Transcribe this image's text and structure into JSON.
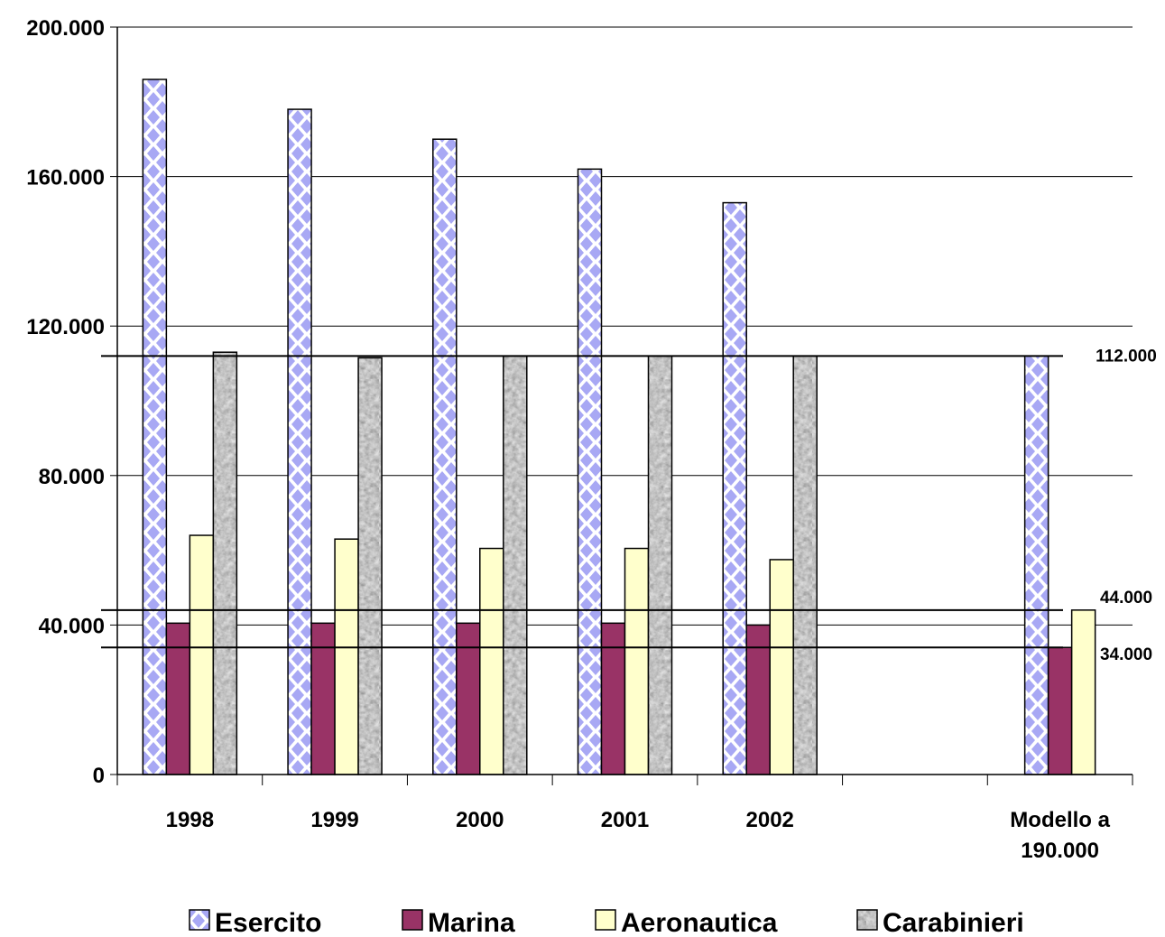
{
  "chart_data": {
    "type": "bar",
    "categories": [
      [
        "1998"
      ],
      [
        "1999"
      ],
      [
        "2000"
      ],
      [
        "2001"
      ],
      [
        "2002"
      ],
      [
        ""
      ],
      [
        "Modello a",
        "190.000"
      ]
    ],
    "series": [
      {
        "name": "Esercito",
        "values": [
          186000,
          178000,
          170000,
          162000,
          153000,
          null,
          112000
        ],
        "color": "#b4b4f8",
        "pattern": "diamonds"
      },
      {
        "name": "Marina",
        "values": [
          40500,
          40500,
          40500,
          40500,
          40000,
          null,
          34000
        ],
        "color": "#993366",
        "pattern": "solid"
      },
      {
        "name": "Aeronautica",
        "values": [
          64000,
          63000,
          60500,
          60500,
          57500,
          null,
          44000
        ],
        "color": "#ffffcc",
        "pattern": "solid"
      },
      {
        "name": "Carabinieri",
        "values": [
          113000,
          111500,
          112000,
          112000,
          112000,
          null,
          null
        ],
        "color": "#b0b0b0",
        "pattern": "marble"
      }
    ],
    "ylim": [
      0,
      200000
    ],
    "yticks": [
      0,
      40000,
      80000,
      120000,
      160000,
      200000
    ],
    "ytick_labels": [
      "0",
      "40.000",
      "80.000",
      "120.000",
      "160.000",
      "200.000"
    ],
    "grid": true,
    "legend_position": "bottom",
    "reference_lines": [
      {
        "value": 112000,
        "label": "112.000"
      },
      {
        "value": 44000,
        "label": "44.000"
      },
      {
        "value": 34000,
        "label": "34.000"
      }
    ],
    "title": "",
    "xlabel": "",
    "ylabel": ""
  }
}
